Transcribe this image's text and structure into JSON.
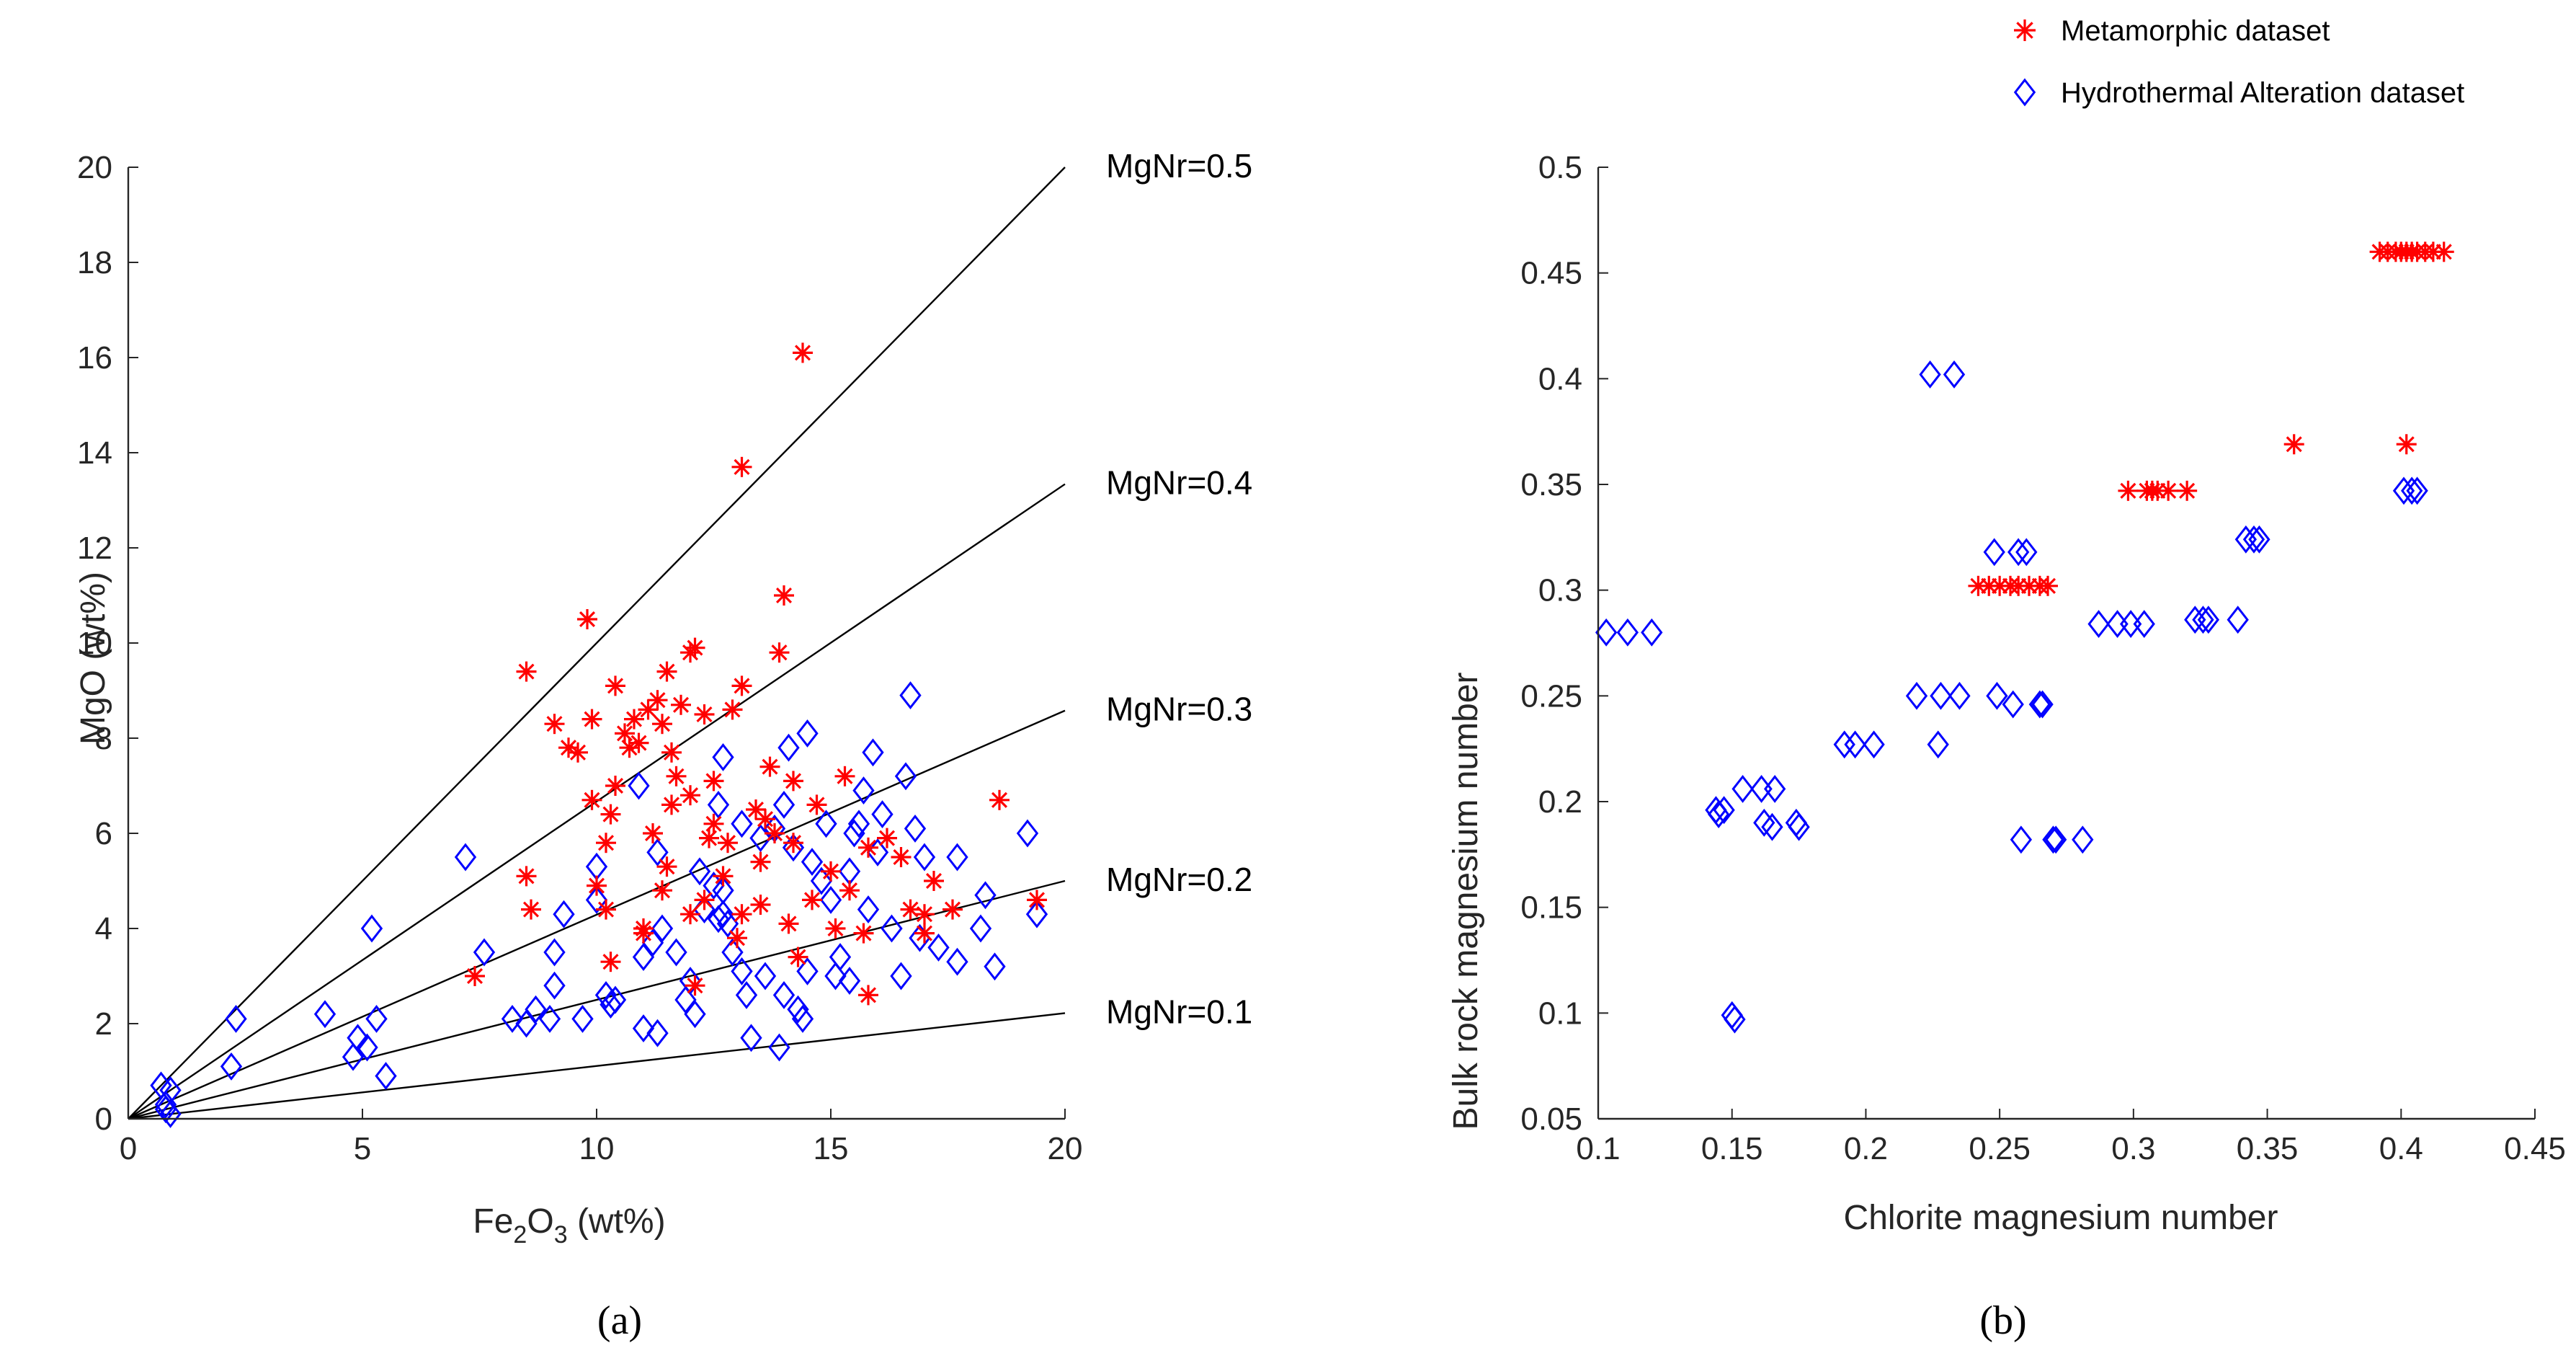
{
  "figure": {
    "legend": [
      {
        "label": "Metamorphic dataset",
        "marker": "asterisk",
        "color": "#ff0000"
      },
      {
        "label": "Hydrothermal Alteration dataset",
        "marker": "diamond",
        "color": "#0000ff"
      }
    ],
    "panels": [
      "(a)",
      "(b)"
    ]
  },
  "chart_data": [
    {
      "type": "scatter",
      "panel": "(a)",
      "title": "",
      "xlabel": {
        "base1": "Fe",
        "sub1": "2",
        "base2": "O",
        "sub2": "3",
        "tail": " (wt%)"
      },
      "ylabel": "MgO (wt%)",
      "xlim": [
        0,
        20
      ],
      "ylim": [
        0,
        20
      ],
      "xticks": [
        0,
        5,
        10,
        15,
        20
      ],
      "yticks": [
        0,
        2,
        4,
        6,
        8,
        10,
        12,
        14,
        16,
        18,
        20
      ],
      "reference_lines": [
        {
          "label": "MgNr=0.5",
          "slope": 1.0
        },
        {
          "label": "MgNr=0.4",
          "slope": 0.667
        },
        {
          "label": "MgNr=0.3",
          "slope": 0.429
        },
        {
          "label": "MgNr=0.2",
          "slope": 0.25
        },
        {
          "label": "MgNr=0.1",
          "slope": 0.111
        }
      ],
      "series": [
        {
          "name": "Metamorphic dataset",
          "points": [
            [
              14.4,
              16.1
            ],
            [
              13.1,
              13.7
            ],
            [
              14.0,
              11.0
            ],
            [
              9.8,
              10.5
            ],
            [
              13.9,
              9.8
            ],
            [
              12.1,
              9.9
            ],
            [
              12.0,
              9.8
            ],
            [
              8.5,
              9.4
            ],
            [
              11.5,
              9.4
            ],
            [
              10.4,
              9.1
            ],
            [
              13.1,
              9.1
            ],
            [
              11.3,
              8.8
            ],
            [
              11.1,
              8.6
            ],
            [
              11.8,
              8.7
            ],
            [
              12.3,
              8.5
            ],
            [
              10.8,
              8.4
            ],
            [
              9.1,
              8.3
            ],
            [
              9.9,
              8.4
            ],
            [
              11.4,
              8.3
            ],
            [
              10.6,
              8.1
            ],
            [
              12.9,
              8.6
            ],
            [
              9.4,
              7.8
            ],
            [
              9.6,
              7.7
            ],
            [
              11.6,
              7.7
            ],
            [
              10.9,
              7.9
            ],
            [
              10.7,
              7.8
            ],
            [
              11.7,
              7.2
            ],
            [
              13.7,
              7.4
            ],
            [
              12.5,
              7.1
            ],
            [
              14.2,
              7.1
            ],
            [
              15.3,
              7.2
            ],
            [
              10.4,
              7.0
            ],
            [
              12.0,
              6.8
            ],
            [
              9.9,
              6.7
            ],
            [
              11.6,
              6.6
            ],
            [
              10.3,
              6.4
            ],
            [
              13.4,
              6.5
            ],
            [
              14.7,
              6.6
            ],
            [
              12.5,
              6.2
            ],
            [
              13.6,
              6.3
            ],
            [
              11.2,
              6.0
            ],
            [
              12.4,
              5.9
            ],
            [
              10.2,
              5.8
            ],
            [
              14.2,
              5.8
            ],
            [
              15.8,
              5.7
            ],
            [
              16.2,
              5.9
            ],
            [
              16.5,
              5.5
            ],
            [
              11.5,
              5.3
            ],
            [
              12.7,
              5.1
            ],
            [
              13.5,
              5.4
            ],
            [
              15.0,
              5.2
            ],
            [
              8.5,
              5.1
            ],
            [
              10.0,
              4.9
            ],
            [
              11.4,
              4.8
            ],
            [
              12.3,
              4.6
            ],
            [
              15.4,
              4.8
            ],
            [
              8.6,
              4.4
            ],
            [
              10.2,
              4.4
            ],
            [
              12.0,
              4.3
            ],
            [
              13.1,
              4.3
            ],
            [
              14.1,
              4.1
            ],
            [
              15.1,
              4.0
            ],
            [
              17.0,
              4.3
            ],
            [
              17.6,
              4.4
            ],
            [
              19.4,
              4.6
            ],
            [
              18.6,
              6.7
            ],
            [
              17.2,
              5.0
            ],
            [
              16.7,
              4.4
            ],
            [
              17.0,
              3.9
            ],
            [
              15.7,
              3.9
            ],
            [
              13.0,
              3.8
            ],
            [
              11.0,
              3.9
            ],
            [
              14.3,
              3.4
            ],
            [
              10.3,
              3.3
            ],
            [
              12.1,
              2.8
            ],
            [
              15.8,
              2.6
            ],
            [
              7.4,
              3.0
            ],
            [
              13.5,
              4.5
            ],
            [
              11.0,
              4.0
            ],
            [
              12.8,
              5.8
            ],
            [
              14.6,
              4.6
            ],
            [
              13.8,
              6.0
            ]
          ]
        },
        {
          "name": "Hydrothermal Alteration dataset",
          "points": [
            [
              0.7,
              0.7
            ],
            [
              0.9,
              0.6
            ],
            [
              0.8,
              0.3
            ],
            [
              0.8,
              0.2
            ],
            [
              0.9,
              0.1
            ],
            [
              2.3,
              2.1
            ],
            [
              2.2,
              1.1
            ],
            [
              4.2,
              2.2
            ],
            [
              4.9,
              1.7
            ],
            [
              5.1,
              1.5
            ],
            [
              4.8,
              1.3
            ],
            [
              5.3,
              2.1
            ],
            [
              5.2,
              4.0
            ],
            [
              5.5,
              0.9
            ],
            [
              7.2,
              5.5
            ],
            [
              7.6,
              3.5
            ],
            [
              8.2,
              2.1
            ],
            [
              8.5,
              2.0
            ],
            [
              8.7,
              2.3
            ],
            [
              9.0,
              2.1
            ],
            [
              9.1,
              2.8
            ],
            [
              9.1,
              3.5
            ],
            [
              9.3,
              4.3
            ],
            [
              9.7,
              2.1
            ],
            [
              10.0,
              5.3
            ],
            [
              10.0,
              4.6
            ],
            [
              10.2,
              2.6
            ],
            [
              10.3,
              2.4
            ],
            [
              10.4,
              2.5
            ],
            [
              11.0,
              1.9
            ],
            [
              11.3,
              1.8
            ],
            [
              11.0,
              3.4
            ],
            [
              11.2,
              3.7
            ],
            [
              11.4,
              4.0
            ],
            [
              11.7,
              3.5
            ],
            [
              11.9,
              2.5
            ],
            [
              12.0,
              2.9
            ],
            [
              12.1,
              2.2
            ],
            [
              12.3,
              4.4
            ],
            [
              12.5,
              4.9
            ],
            [
              12.6,
              4.2
            ],
            [
              12.7,
              4.8
            ],
            [
              12.7,
              4.3
            ],
            [
              12.8,
              4.1
            ],
            [
              12.9,
              3.5
            ],
            [
              13.1,
              3.1
            ],
            [
              13.2,
              2.6
            ],
            [
              13.3,
              1.7
            ],
            [
              13.6,
              3.0
            ],
            [
              13.9,
              1.5
            ],
            [
              14.0,
              2.6
            ],
            [
              14.3,
              2.3
            ],
            [
              14.4,
              2.1
            ],
            [
              14.5,
              3.1
            ],
            [
              14.5,
              8.1
            ],
            [
              14.6,
              5.4
            ],
            [
              14.8,
              5.0
            ],
            [
              15.0,
              4.6
            ],
            [
              15.1,
              3.0
            ],
            [
              15.2,
              3.4
            ],
            [
              15.4,
              2.9
            ],
            [
              15.5,
              6.0
            ],
            [
              15.7,
              6.9
            ],
            [
              15.8,
              4.4
            ],
            [
              16.0,
              5.6
            ],
            [
              16.3,
              4.0
            ],
            [
              16.5,
              3.0
            ],
            [
              16.6,
              7.2
            ],
            [
              16.7,
              8.9
            ],
            [
              16.9,
              3.8
            ],
            [
              17.0,
              5.5
            ],
            [
              17.3,
              3.6
            ],
            [
              17.7,
              3.3
            ],
            [
              17.7,
              5.5
            ],
            [
              18.2,
              4.0
            ],
            [
              18.3,
              4.7
            ],
            [
              18.5,
              3.2
            ],
            [
              19.2,
              6.0
            ],
            [
              19.4,
              4.3
            ],
            [
              12.2,
              5.2
            ],
            [
              12.6,
              6.6
            ],
            [
              13.1,
              6.2
            ],
            [
              13.5,
              5.9
            ],
            [
              13.8,
              6.1
            ],
            [
              14.0,
              6.6
            ],
            [
              14.2,
              5.7
            ],
            [
              14.9,
              6.2
            ],
            [
              15.4,
              5.2
            ],
            [
              15.6,
              6.2
            ],
            [
              16.1,
              6.4
            ],
            [
              16.8,
              6.1
            ],
            [
              15.9,
              7.7
            ],
            [
              14.1,
              7.8
            ],
            [
              12.7,
              7.6
            ],
            [
              11.3,
              5.6
            ],
            [
              10.9,
              7.0
            ]
          ]
        }
      ]
    },
    {
      "type": "scatter",
      "panel": "(b)",
      "title": "",
      "xlabel": "Chlorite magnesium number",
      "ylabel": "Bulk rock magnesium number",
      "xlim": [
        0.1,
        0.45
      ],
      "ylim": [
        0.05,
        0.5
      ],
      "xticks": [
        0.1,
        0.15,
        0.2,
        0.25,
        0.3,
        0.35,
        0.4,
        0.45
      ],
      "xtick_labels": [
        "0.1",
        "0.15",
        "0.2",
        "0.25",
        "0.3",
        "0.35",
        "0.4",
        "0.45"
      ],
      "yticks": [
        0.05,
        0.1,
        0.15,
        0.2,
        0.25,
        0.3,
        0.35,
        0.4,
        0.45,
        0.5
      ],
      "ytick_labels": [
        "0.05",
        "0.1",
        "0.15",
        "0.2",
        "0.25",
        "0.3",
        "0.35",
        "0.4",
        "0.45",
        "0.5"
      ],
      "series": [
        {
          "name": "Metamorphic dataset",
          "points": [
            [
              0.392,
              0.46
            ],
            [
              0.395,
              0.46
            ],
            [
              0.398,
              0.46
            ],
            [
              0.4,
              0.46
            ],
            [
              0.402,
              0.46
            ],
            [
              0.404,
              0.46
            ],
            [
              0.406,
              0.46
            ],
            [
              0.409,
              0.46
            ],
            [
              0.412,
              0.46
            ],
            [
              0.416,
              0.46
            ],
            [
              0.36,
              0.369
            ],
            [
              0.402,
              0.369
            ],
            [
              0.298,
              0.347
            ],
            [
              0.305,
              0.347
            ],
            [
              0.307,
              0.347
            ],
            [
              0.309,
              0.347
            ],
            [
              0.313,
              0.347
            ],
            [
              0.32,
              0.347
            ],
            [
              0.242,
              0.302
            ],
            [
              0.246,
              0.302
            ],
            [
              0.25,
              0.302
            ],
            [
              0.254,
              0.302
            ],
            [
              0.257,
              0.302
            ],
            [
              0.261,
              0.302
            ],
            [
              0.265,
              0.302
            ],
            [
              0.268,
              0.302
            ]
          ]
        },
        {
          "name": "Hydrothermal Alteration dataset",
          "points": [
            [
              0.103,
              0.28
            ],
            [
              0.111,
              0.28
            ],
            [
              0.12,
              0.28
            ],
            [
              0.144,
              0.196
            ],
            [
              0.145,
              0.194
            ],
            [
              0.147,
              0.196
            ],
            [
              0.15,
              0.099
            ],
            [
              0.151,
              0.097
            ],
            [
              0.154,
              0.206
            ],
            [
              0.161,
              0.206
            ],
            [
              0.166,
              0.206
            ],
            [
              0.162,
              0.19
            ],
            [
              0.165,
              0.188
            ],
            [
              0.174,
              0.19
            ],
            [
              0.175,
              0.188
            ],
            [
              0.192,
              0.227
            ],
            [
              0.196,
              0.227
            ],
            [
              0.203,
              0.227
            ],
            [
              0.219,
              0.25
            ],
            [
              0.228,
              0.25
            ],
            [
              0.235,
              0.25
            ],
            [
              0.227,
              0.227
            ],
            [
              0.224,
              0.402
            ],
            [
              0.233,
              0.402
            ],
            [
              0.248,
              0.318
            ],
            [
              0.257,
              0.318
            ],
            [
              0.26,
              0.318
            ],
            [
              0.249,
              0.25
            ],
            [
              0.255,
              0.246
            ],
            [
              0.265,
              0.246
            ],
            [
              0.266,
              0.246
            ],
            [
              0.258,
              0.182
            ],
            [
              0.27,
              0.182
            ],
            [
              0.271,
              0.182
            ],
            [
              0.281,
              0.182
            ],
            [
              0.287,
              0.284
            ],
            [
              0.294,
              0.284
            ],
            [
              0.299,
              0.284
            ],
            [
              0.304,
              0.284
            ],
            [
              0.323,
              0.286
            ],
            [
              0.326,
              0.286
            ],
            [
              0.328,
              0.286
            ],
            [
              0.339,
              0.286
            ],
            [
              0.342,
              0.324
            ],
            [
              0.345,
              0.324
            ],
            [
              0.347,
              0.324
            ],
            [
              0.401,
              0.347
            ],
            [
              0.404,
              0.347
            ],
            [
              0.406,
              0.347
            ]
          ]
        }
      ]
    }
  ]
}
